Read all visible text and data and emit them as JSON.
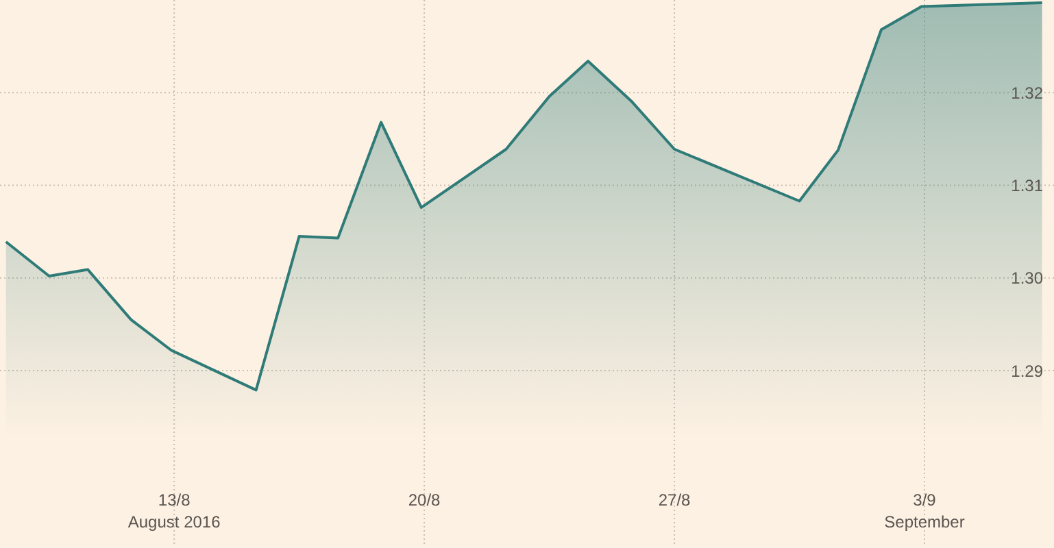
{
  "chart_data": {
    "type": "area",
    "x": [
      "2016-08-08T07:00",
      "2016-08-09T12:00",
      "2016-08-10T14:00",
      "2016-08-11T19:00",
      "2016-08-12T22:00",
      "2016-08-15T07:00",
      "2016-08-16T12:00",
      "2016-08-17T14:00",
      "2016-08-18T19:00",
      "2016-08-19T22:00",
      "2016-08-22T07:00",
      "2016-08-23T12:00",
      "2016-08-24T14:00",
      "2016-08-25T19:00",
      "2016-08-27T00:00",
      "2016-08-30T12:00",
      "2016-08-31T14:00",
      "2016-09-01T19:00",
      "2016-09-02T22:00",
      "2016-09-06T07:00"
    ],
    "series": [
      {
        "color": "#2e7b78",
        "values": [
          1.3039,
          1.3002,
          1.3009,
          1.2955,
          1.2922,
          1.2879,
          1.3045,
          1.3043,
          1.3168,
          1.3076,
          1.3139,
          1.3196,
          1.3234,
          1.3191,
          1.3139,
          1.3083,
          1.3138,
          1.3268,
          1.3293,
          1.3297
        ]
      }
    ],
    "xlim": [
      "2016-08-08T03:00",
      "2016-09-06T15:00"
    ],
    "xticks": [
      {
        "value": "2016-08-13",
        "label": "13/8\nAugust 2016"
      },
      {
        "value": "2016-08-20",
        "label": "20/8"
      },
      {
        "value": "2016-08-27",
        "label": "27/8"
      },
      {
        "value": "2016-09-03",
        "label": "3/9\nSeptember"
      }
    ],
    "ylim": [
      1.271,
      1.33
    ],
    "yticks": [
      1.29,
      {
        "value": 1.3,
        "label": "1.30"
      },
      1.31,
      1.32
    ],
    "grid": true
  }
}
